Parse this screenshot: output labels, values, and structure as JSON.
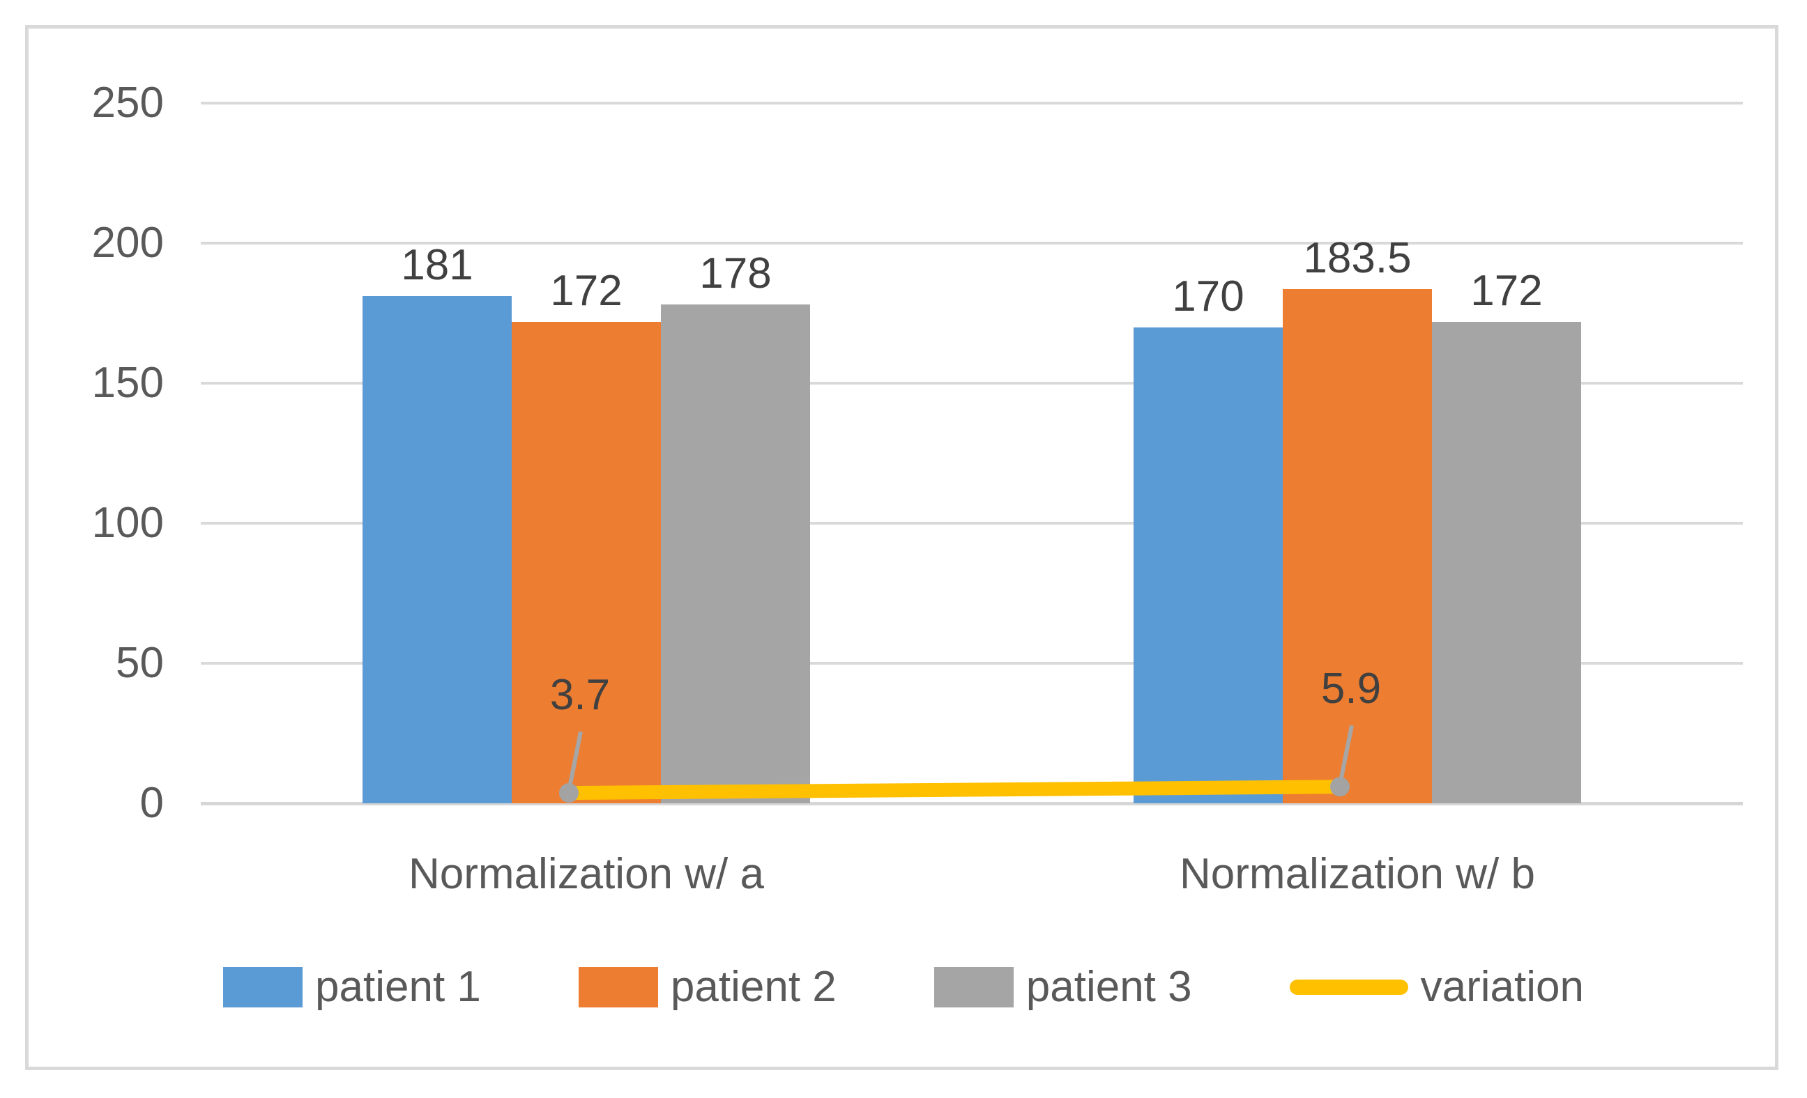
{
  "chart_data": {
    "type": "bar",
    "subtype": "grouped-bars-with-line-overlay",
    "title": "",
    "xlabel": "",
    "ylabel": "",
    "categories": [
      "Normalization w/ a",
      "Normalization w/ b"
    ],
    "series": [
      {
        "name": "patient 1",
        "kind": "bar",
        "color": "#5B9BD5",
        "values": [
          181,
          170
        ],
        "data_labels": [
          "181",
          "170"
        ]
      },
      {
        "name": "patient 2",
        "kind": "bar",
        "color": "#ED7D31",
        "values": [
          172,
          183.5
        ],
        "data_labels": [
          "172",
          "183.5"
        ]
      },
      {
        "name": "patient 3",
        "kind": "bar",
        "color": "#A5A5A5",
        "values": [
          178,
          172
        ],
        "data_labels": [
          "178",
          "172"
        ]
      },
      {
        "name": "variation",
        "kind": "line",
        "color": "#FFC000",
        "marker_color": "#A3A3A3",
        "values": [
          3.7,
          5.9
        ],
        "data_labels": [
          "3.7",
          "5.9"
        ]
      }
    ],
    "y_axis": {
      "min": 0,
      "max": 250,
      "step": 50,
      "ticks": [
        "250",
        "200",
        "150",
        "100",
        "50",
        "0"
      ]
    },
    "grid": true,
    "gridline_color": "#D9D9D9",
    "legend_position": "bottom",
    "legend_entries": [
      "patient 1",
      "patient 2",
      "patient 3",
      "variation"
    ]
  },
  "colors": {
    "background": "#FFFFFF",
    "frame_border": "#D9D9D9",
    "axis_text": "#595959",
    "data_label_text": "#404040",
    "leader_line": "#A6A6A6"
  }
}
